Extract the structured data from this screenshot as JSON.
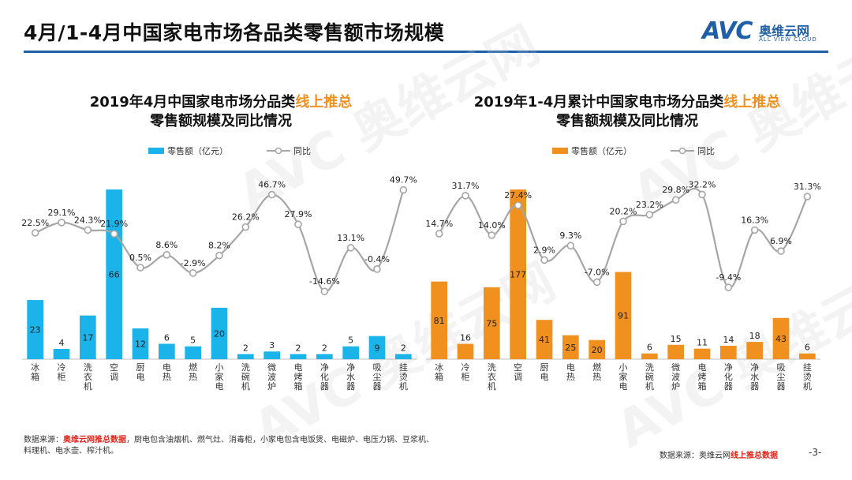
{
  "page": {
    "title": "4月/1-4月中国家电市场各品类零售额市场规模",
    "logo_mark": "AVC",
    "logo_cn": "奥维云网",
    "logo_en": "ALL VIEW CLOUD",
    "watermark": "AVC 奥维云网",
    "page_number": "-3-"
  },
  "footnotes": {
    "left_prefix": "数据来源：",
    "left_source": "奥维云网推总数据",
    "left_rest": "，厨电包含油烟机、燃气灶、消毒柜，小家电包含电饭煲、电磁炉、电压力锅、豆浆机、料理机、电水壶、榨汁机。",
    "right_prefix": "数据来源：奥维云网",
    "right_source": "线上推总数据"
  },
  "colors": {
    "accent_blue": "#1f5fa8",
    "bar_blue": "#1ab3ea",
    "bar_orange": "#f0901e",
    "line_gray": "#a6a6a6",
    "highlight": "#f0901e"
  },
  "chart_data": [
    {
      "type": "bar",
      "title_part1": "2019年4月中国家电市场分品类",
      "title_highlight": "线上推总",
      "title_line2": "零售额规模及同比情况",
      "legend_bar": "零售额（亿元）",
      "legend_line": "同比",
      "categories": [
        "冰箱",
        "冷柜",
        "洗衣机",
        "空调",
        "厨电",
        "电热",
        "燃热",
        "小家电",
        "洗碗机",
        "微波炉",
        "电烤箱",
        "净化器",
        "净水器",
        "吸尘器",
        "挂烫机"
      ],
      "values": [
        23,
        4,
        17,
        66,
        12,
        6,
        5,
        20,
        2,
        3,
        2,
        2,
        5,
        9,
        2
      ],
      "value_labels": [
        "23",
        "4",
        "17",
        "66",
        "12",
        "6",
        "5",
        "20",
        "2",
        "3",
        "2",
        "2",
        "5",
        "9",
        "2"
      ],
      "yoy": [
        22.5,
        29.1,
        24.3,
        21.9,
        0.5,
        8.6,
        -2.9,
        8.2,
        26.2,
        46.7,
        27.9,
        -14.6,
        13.1,
        -0.4,
        49.7
      ],
      "yoy_labels": [
        "22.5%",
        "29.1%",
        "24.3%",
        "21.9%",
        "0.5%",
        "8.6%",
        "-2.9%",
        "8.2%",
        "26.2%",
        "46.7%",
        "27.9%",
        "-14.6%",
        "13.1%",
        "-0.4%",
        "49.7%"
      ],
      "ylim": [
        0,
        66
      ],
      "yoy_lim": [
        -20,
        55
      ]
    },
    {
      "type": "bar",
      "title_part1": "2019年1-4月累计中国家电市场分品类",
      "title_highlight": "线上推总",
      "title_line2": "零售额规模及同比情况",
      "legend_bar": "零售额（亿元）",
      "legend_line": "同比",
      "categories": [
        "冰箱",
        "冷柜",
        "洗衣机",
        "空调",
        "厨电",
        "电热",
        "燃热",
        "小家电",
        "洗碗机",
        "微波炉",
        "电烤箱",
        "净化器",
        "净水器",
        "吸尘器",
        "挂烫机"
      ],
      "values": [
        81,
        16,
        75,
        177,
        41,
        25,
        20,
        91,
        6,
        15,
        11,
        14,
        18,
        43,
        6
      ],
      "value_labels": [
        "81",
        "16",
        "75",
        "177",
        "41",
        "25",
        "20",
        "91",
        "6",
        "15",
        "11",
        "14",
        "18",
        "43",
        "6"
      ],
      "yoy": [
        14.7,
        31.7,
        14.0,
        27.4,
        2.9,
        9.3,
        -7.0,
        20.2,
        23.2,
        29.8,
        32.2,
        -9.4,
        16.3,
        6.9,
        31.3
      ],
      "yoy_labels": [
        "14.7%",
        "31.7%",
        "14.0%",
        "27.4%",
        "2.9%",
        "9.3%",
        "-7.0%",
        "20.2%",
        "23.2%",
        "29.8%",
        "32.2%",
        "-9.4%",
        "16.3%",
        "6.9%",
        "31.3%"
      ],
      "ylim": [
        0,
        177
      ],
      "yoy_lim": [
        -15,
        38
      ]
    }
  ]
}
